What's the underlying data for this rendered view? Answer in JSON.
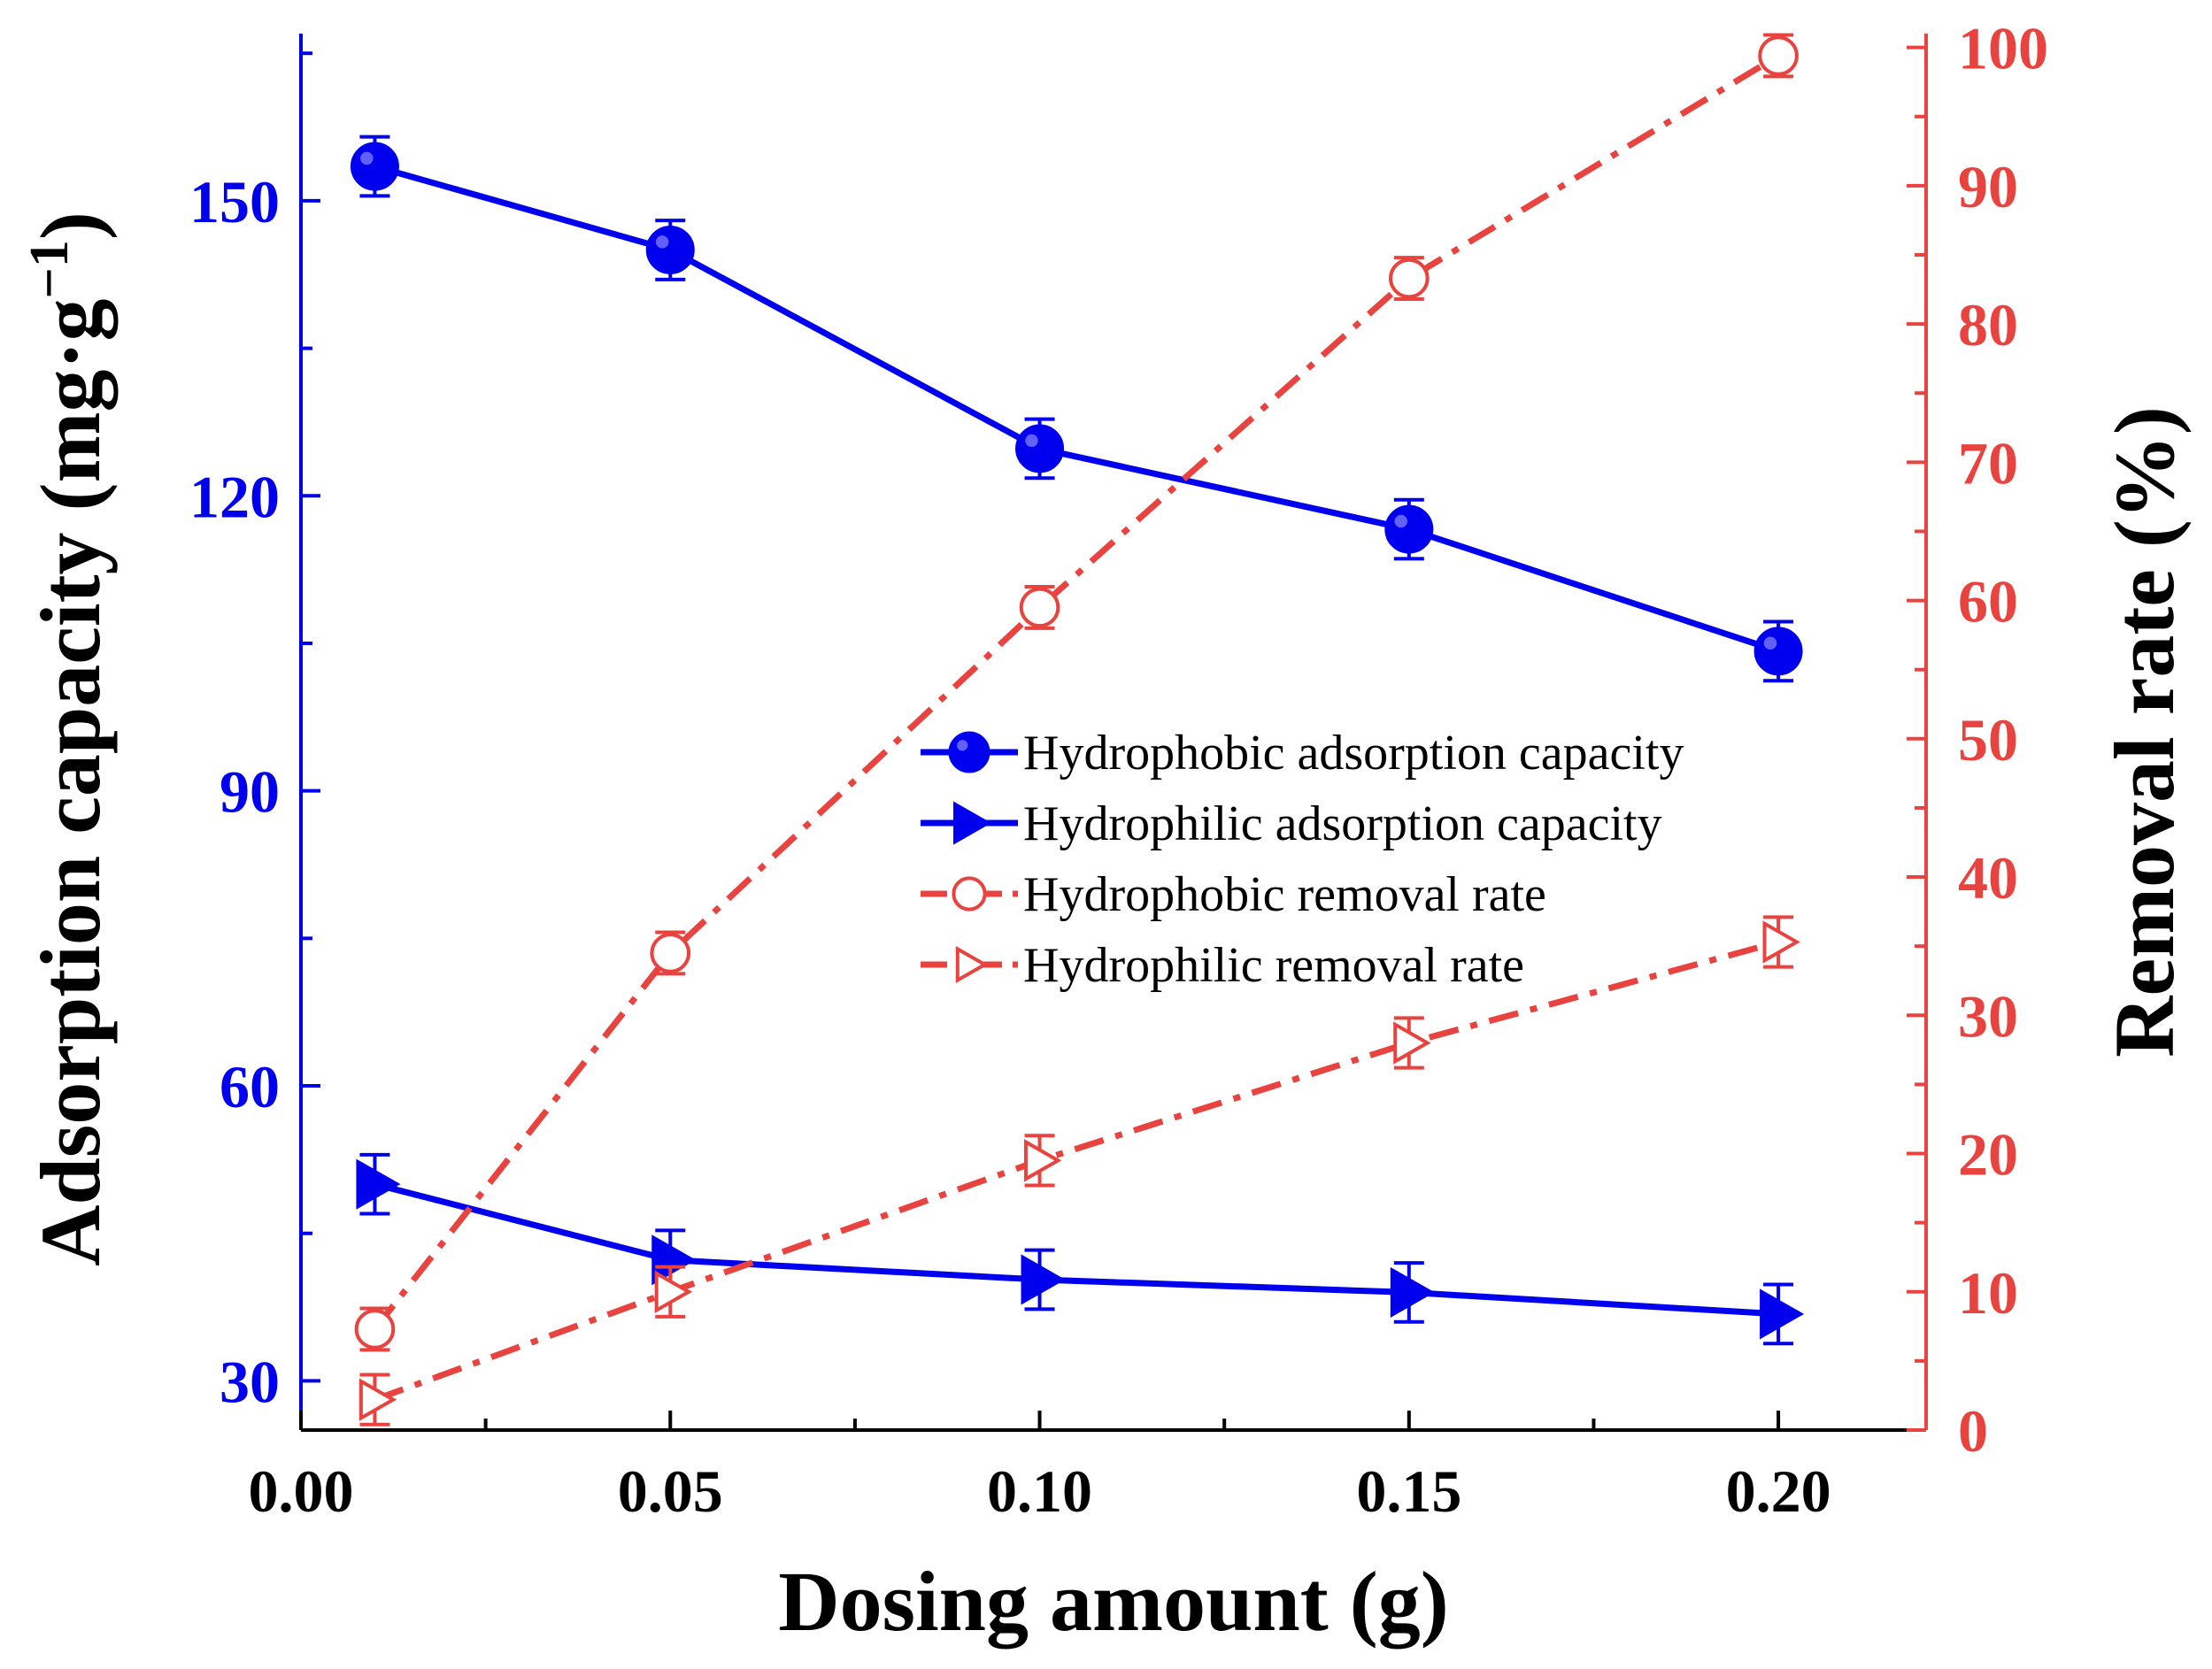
{
  "chart_data": {
    "type": "line",
    "xlabel": "Dosing amount (g)",
    "xlim": [
      0.0,
      0.22
    ],
    "x_ticks": [
      "0.00",
      "0.05",
      "0.10",
      "0.15",
      "0.20"
    ],
    "x": [
      0.01,
      0.05,
      0.1,
      0.15,
      0.2
    ],
    "left_axis": {
      "label_main": "Adsorption capacity (mg·g",
      "label_sup": "−1",
      "label_close": ")",
      "ylim": [
        25,
        167
      ],
      "ticks": [
        "30",
        "60",
        "90",
        "120",
        "150"
      ],
      "color": "#0000ee"
    },
    "right_axis": {
      "label": "Removal rate (%)",
      "ylim": [
        0,
        101
      ],
      "ticks": [
        "0",
        "10",
        "20",
        "30",
        "40",
        "50",
        "60",
        "70",
        "80",
        "90",
        "100"
      ],
      "color": "#e8433f"
    },
    "series": [
      {
        "name": "Hydrophobic adsorption capacity",
        "axis": "left",
        "color": "#0000ee",
        "line": "solid",
        "marker": "circle-filled",
        "values": [
          153.5,
          145.0,
          124.8,
          116.6,
          104.2
        ],
        "errors": [
          3.0,
          3.0,
          3.0,
          3.0,
          3.0
        ]
      },
      {
        "name": "Hydrophilic adsorption capacity",
        "axis": "left",
        "color": "#0000ee",
        "line": "solid",
        "marker": "triangle-right-filled",
        "values": [
          50.0,
          42.3,
          40.3,
          39.0,
          36.8
        ],
        "errors": [
          3.0,
          3.0,
          3.0,
          3.0,
          3.0
        ]
      },
      {
        "name": "Hydrophobic removal rate",
        "axis": "right",
        "color": "#e8433f",
        "line": "dashdot",
        "marker": "circle-open",
        "values": [
          7.3,
          34.5,
          59.5,
          83.3,
          99.4
        ],
        "errors": [
          1.5,
          1.5,
          1.5,
          1.5,
          1.5
        ]
      },
      {
        "name": "Hydrophilic removal rate",
        "axis": "right",
        "color": "#e8433f",
        "line": "dashdot",
        "marker": "triangle-right-open",
        "values": [
          2.2,
          10.0,
          19.5,
          28.0,
          35.3
        ],
        "errors": [
          1.8,
          1.8,
          1.8,
          1.8,
          1.8
        ]
      }
    ],
    "legend_position": "center-right"
  }
}
